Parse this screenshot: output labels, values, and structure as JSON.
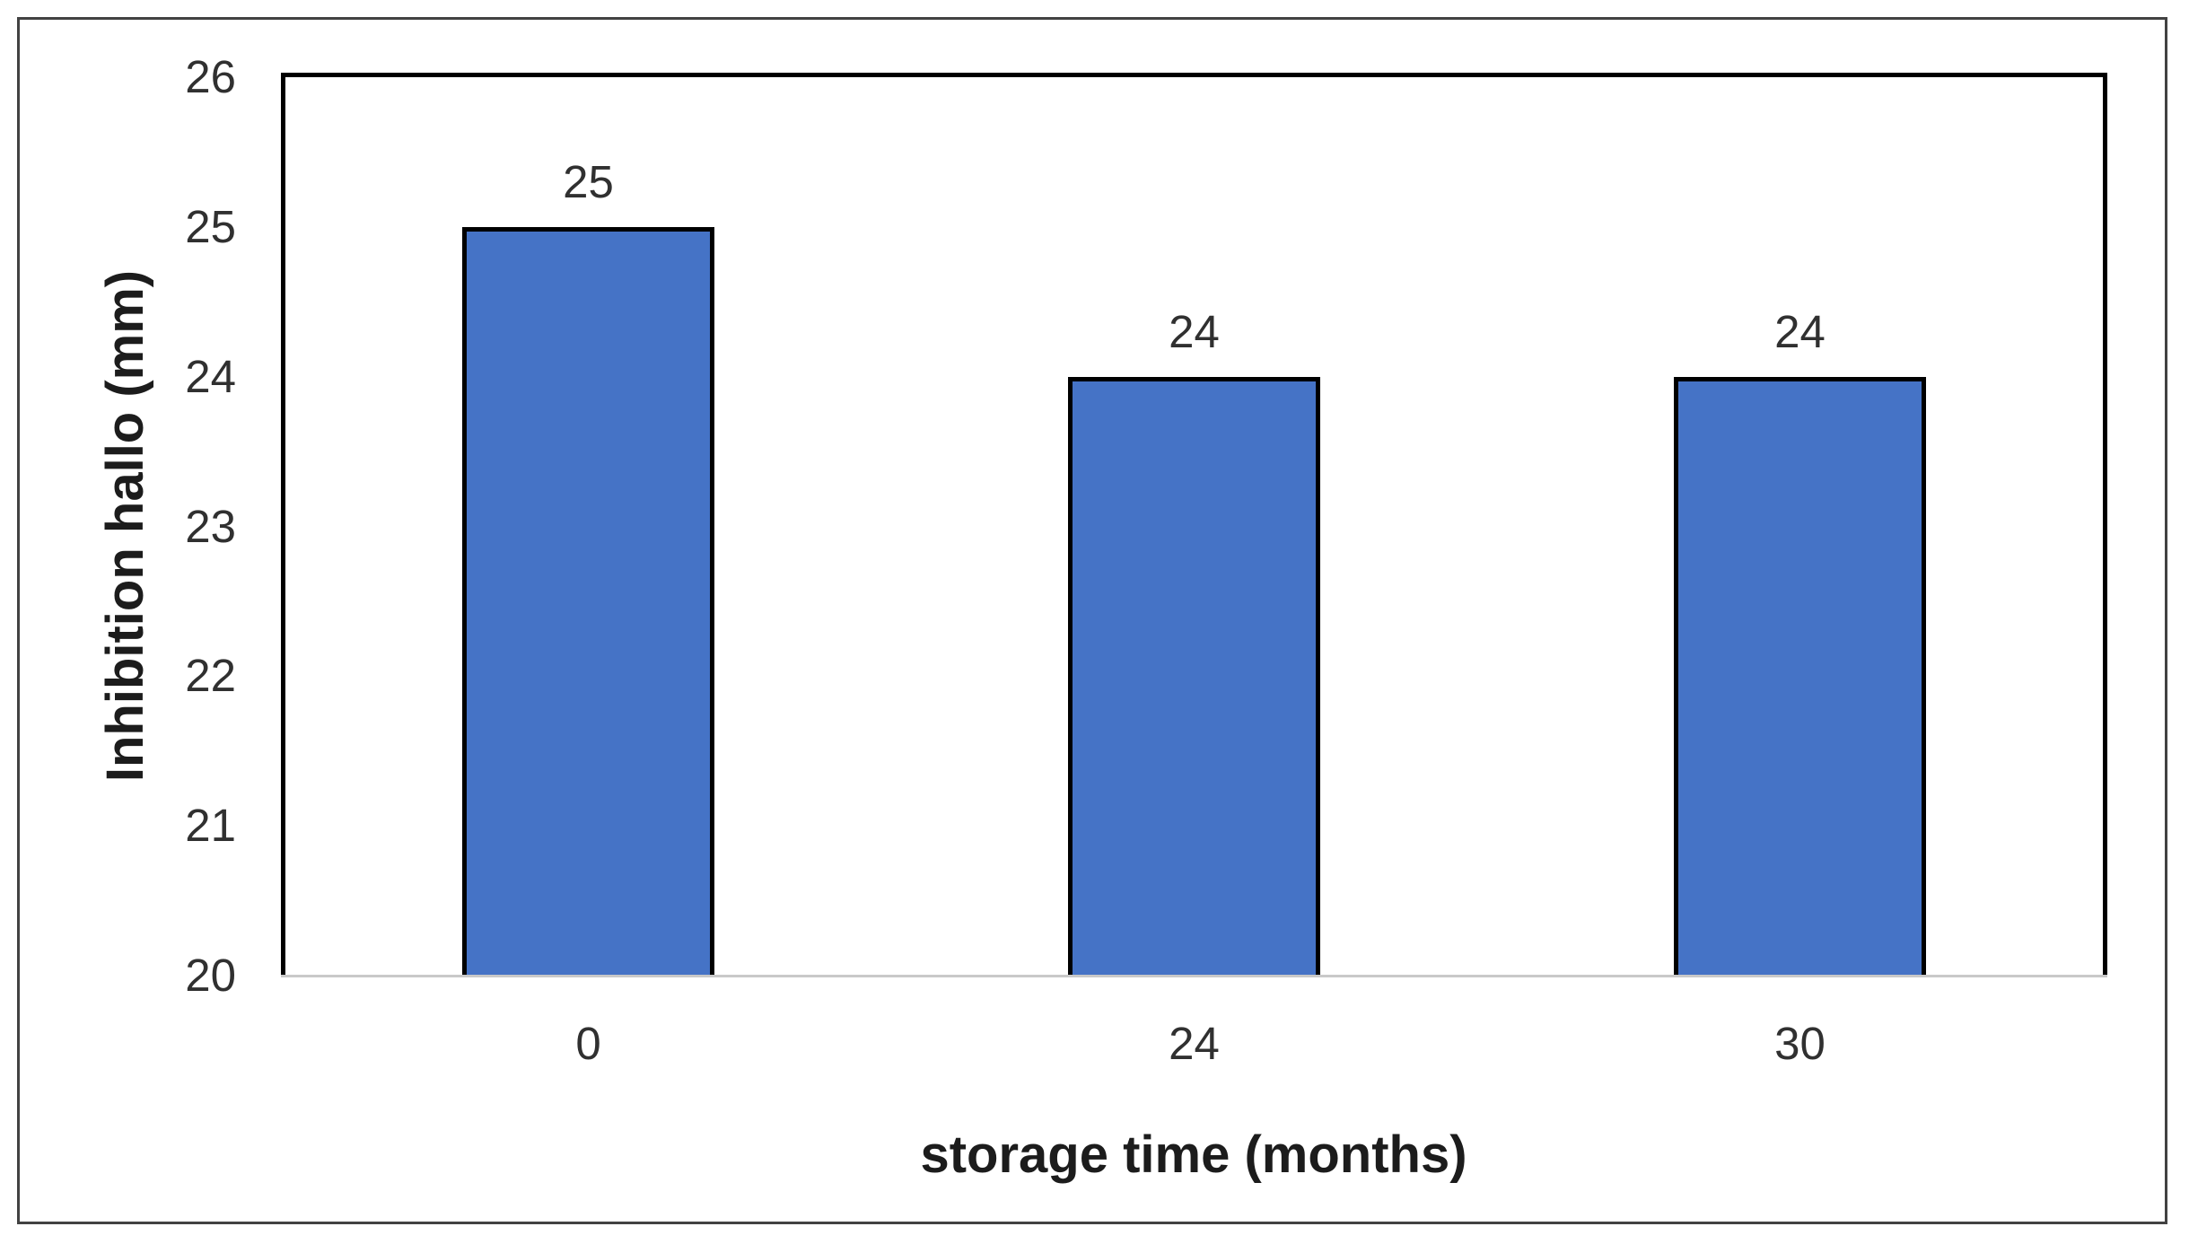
{
  "chart_data": {
    "type": "bar",
    "title": "",
    "categories": [
      "0",
      "24",
      "30"
    ],
    "values": [
      25,
      24,
      24
    ],
    "data_labels": [
      "25",
      "24",
      "24"
    ],
    "xlabel": "storage time (months)",
    "ylabel": "Inhibition hallo (mm)",
    "ylim": [
      20,
      26
    ],
    "yticks": [
      20,
      21,
      22,
      23,
      24,
      25,
      26
    ],
    "grid": false,
    "legend_position": "none",
    "bar_width_ratio": 0.415,
    "colors": {
      "bar_fill": "#4573C6",
      "bar_border": "#000000",
      "plot_border": "#000000",
      "baseline": "#C9C9C9",
      "tick_text": "#303030",
      "title_text": "#1C1C1C",
      "figure_border": "#424242",
      "background": "#FFFFFF"
    }
  }
}
